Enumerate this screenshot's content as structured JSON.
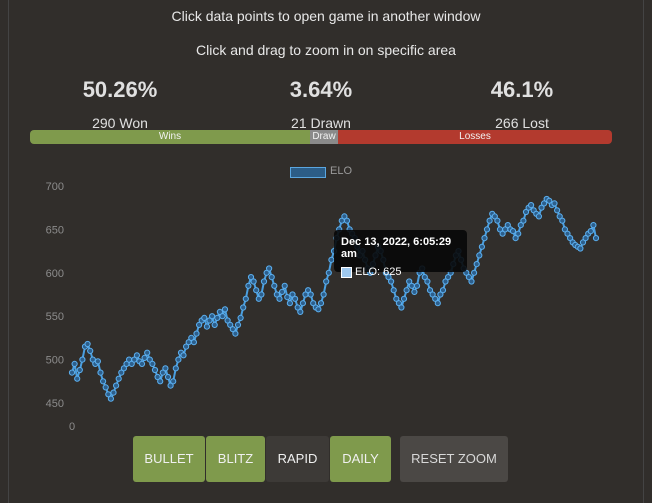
{
  "instructions": {
    "line1": "Click data points to open game in another window",
    "line2": "Click and drag to zoom in on specific area"
  },
  "stats": {
    "wins_pct": "50.26%",
    "wins_count": "290 Won",
    "draws_pct": "3.64%",
    "draws_count": "21 Drawn",
    "losses_pct": "46.1%",
    "losses_count": "266 Lost"
  },
  "bar": {
    "wins_label": "Wins",
    "draw_label": "Draw",
    "losses_label": "Losses"
  },
  "colors": {
    "win": "#7f9a4c",
    "draw": "#8a8a8a",
    "loss": "#b33a2e",
    "line": "#4a9fe0",
    "background": "#312e2b"
  },
  "tooltip": {
    "title": "Dec 13, 2022, 6:05:29 am",
    "body": "ELO: 625"
  },
  "buttons": [
    {
      "label": "BULLET",
      "state": "active"
    },
    {
      "label": "BLITZ",
      "state": "active"
    },
    {
      "label": "RAPID",
      "state": "inactive"
    },
    {
      "label": "DAILY",
      "state": "active"
    },
    {
      "label": "RESET ZOOM",
      "state": "action"
    }
  ],
  "chart_data": {
    "type": "line",
    "title": "",
    "xlabel": "",
    "ylabel": "",
    "legend": {
      "position": "top",
      "entries": [
        "ELO"
      ]
    },
    "ylim": [
      450,
      700
    ],
    "y_ticks": [
      "700",
      "650",
      "600",
      "550",
      "500",
      "450"
    ],
    "x_tick": "0",
    "grid": false,
    "series": [
      {
        "name": "ELO",
        "values": [
          485,
          495,
          478,
          488,
          500,
          515,
          518,
          510,
          500,
          495,
          498,
          485,
          475,
          468,
          460,
          455,
          462,
          470,
          478,
          485,
          490,
          495,
          500,
          495,
          500,
          505,
          498,
          495,
          502,
          508,
          500,
          495,
          488,
          480,
          475,
          485,
          490,
          480,
          470,
          475,
          490,
          500,
          508,
          505,
          515,
          520,
          525,
          520,
          530,
          540,
          545,
          548,
          538,
          545,
          550,
          540,
          548,
          555,
          550,
          558,
          545,
          540,
          535,
          530,
          540,
          548,
          560,
          570,
          585,
          595,
          590,
          580,
          570,
          575,
          590,
          600,
          605,
          595,
          585,
          575,
          570,
          578,
          585,
          572,
          565,
          575,
          570,
          560,
          555,
          565,
          575,
          580,
          575,
          565,
          560,
          558,
          565,
          575,
          590,
          600,
          615,
          625,
          640,
          650,
          660,
          665,
          660,
          650,
          645,
          640,
          630,
          620,
          625,
          615,
          605,
          600,
          610,
          620,
          630,
          625,
          615,
          600,
          595,
          590,
          580,
          570,
          565,
          560,
          570,
          580,
          590,
          585,
          578,
          585,
          600,
          605,
          595,
          590,
          580,
          575,
          570,
          565,
          575,
          580,
          590,
          595,
          600,
          610,
          620,
          625,
          615,
          605,
          600,
          595,
          590,
          600,
          610,
          620,
          630,
          640,
          650,
          660,
          668,
          665,
          660,
          650,
          645,
          650,
          655,
          650,
          648,
          640,
          645,
          655,
          660,
          670,
          675,
          678,
          672,
          668,
          665,
          675,
          680,
          685,
          683,
          678,
          680,
          672,
          665,
          660,
          650,
          645,
          640,
          635,
          632,
          630,
          628,
          635,
          640,
          645,
          648,
          655,
          640
        ]
      }
    ]
  }
}
